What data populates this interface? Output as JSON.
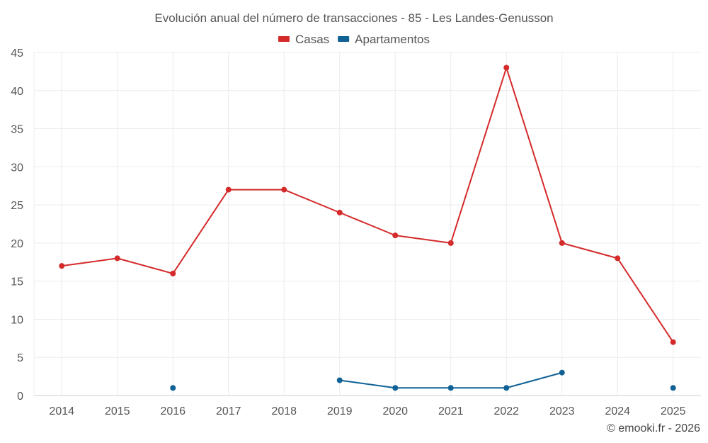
{
  "chart_data": {
    "type": "line",
    "title": "Evolución anual del número de transacciones - 85 - Les Landes-Genusson",
    "categories": [
      "2014",
      "2015",
      "2016",
      "2017",
      "2018",
      "2019",
      "2020",
      "2021",
      "2022",
      "2023",
      "2024",
      "2025"
    ],
    "ylim": [
      0,
      45
    ],
    "yticks": [
      0,
      5,
      10,
      15,
      20,
      25,
      30,
      35,
      40,
      45
    ],
    "grid": true,
    "legend_position": "top-center",
    "series": [
      {
        "name": "Casas",
        "color": "#d42a2a",
        "values": [
          17,
          18,
          16,
          27,
          27,
          24,
          21,
          20,
          43,
          20,
          18,
          7
        ]
      },
      {
        "name": "Apartamentos",
        "color": "#0f6196",
        "values": [
          null,
          null,
          1,
          null,
          null,
          2,
          1,
          1,
          1,
          3,
          null,
          1
        ]
      }
    ]
  },
  "credit": "© emooki.fr - 2026"
}
